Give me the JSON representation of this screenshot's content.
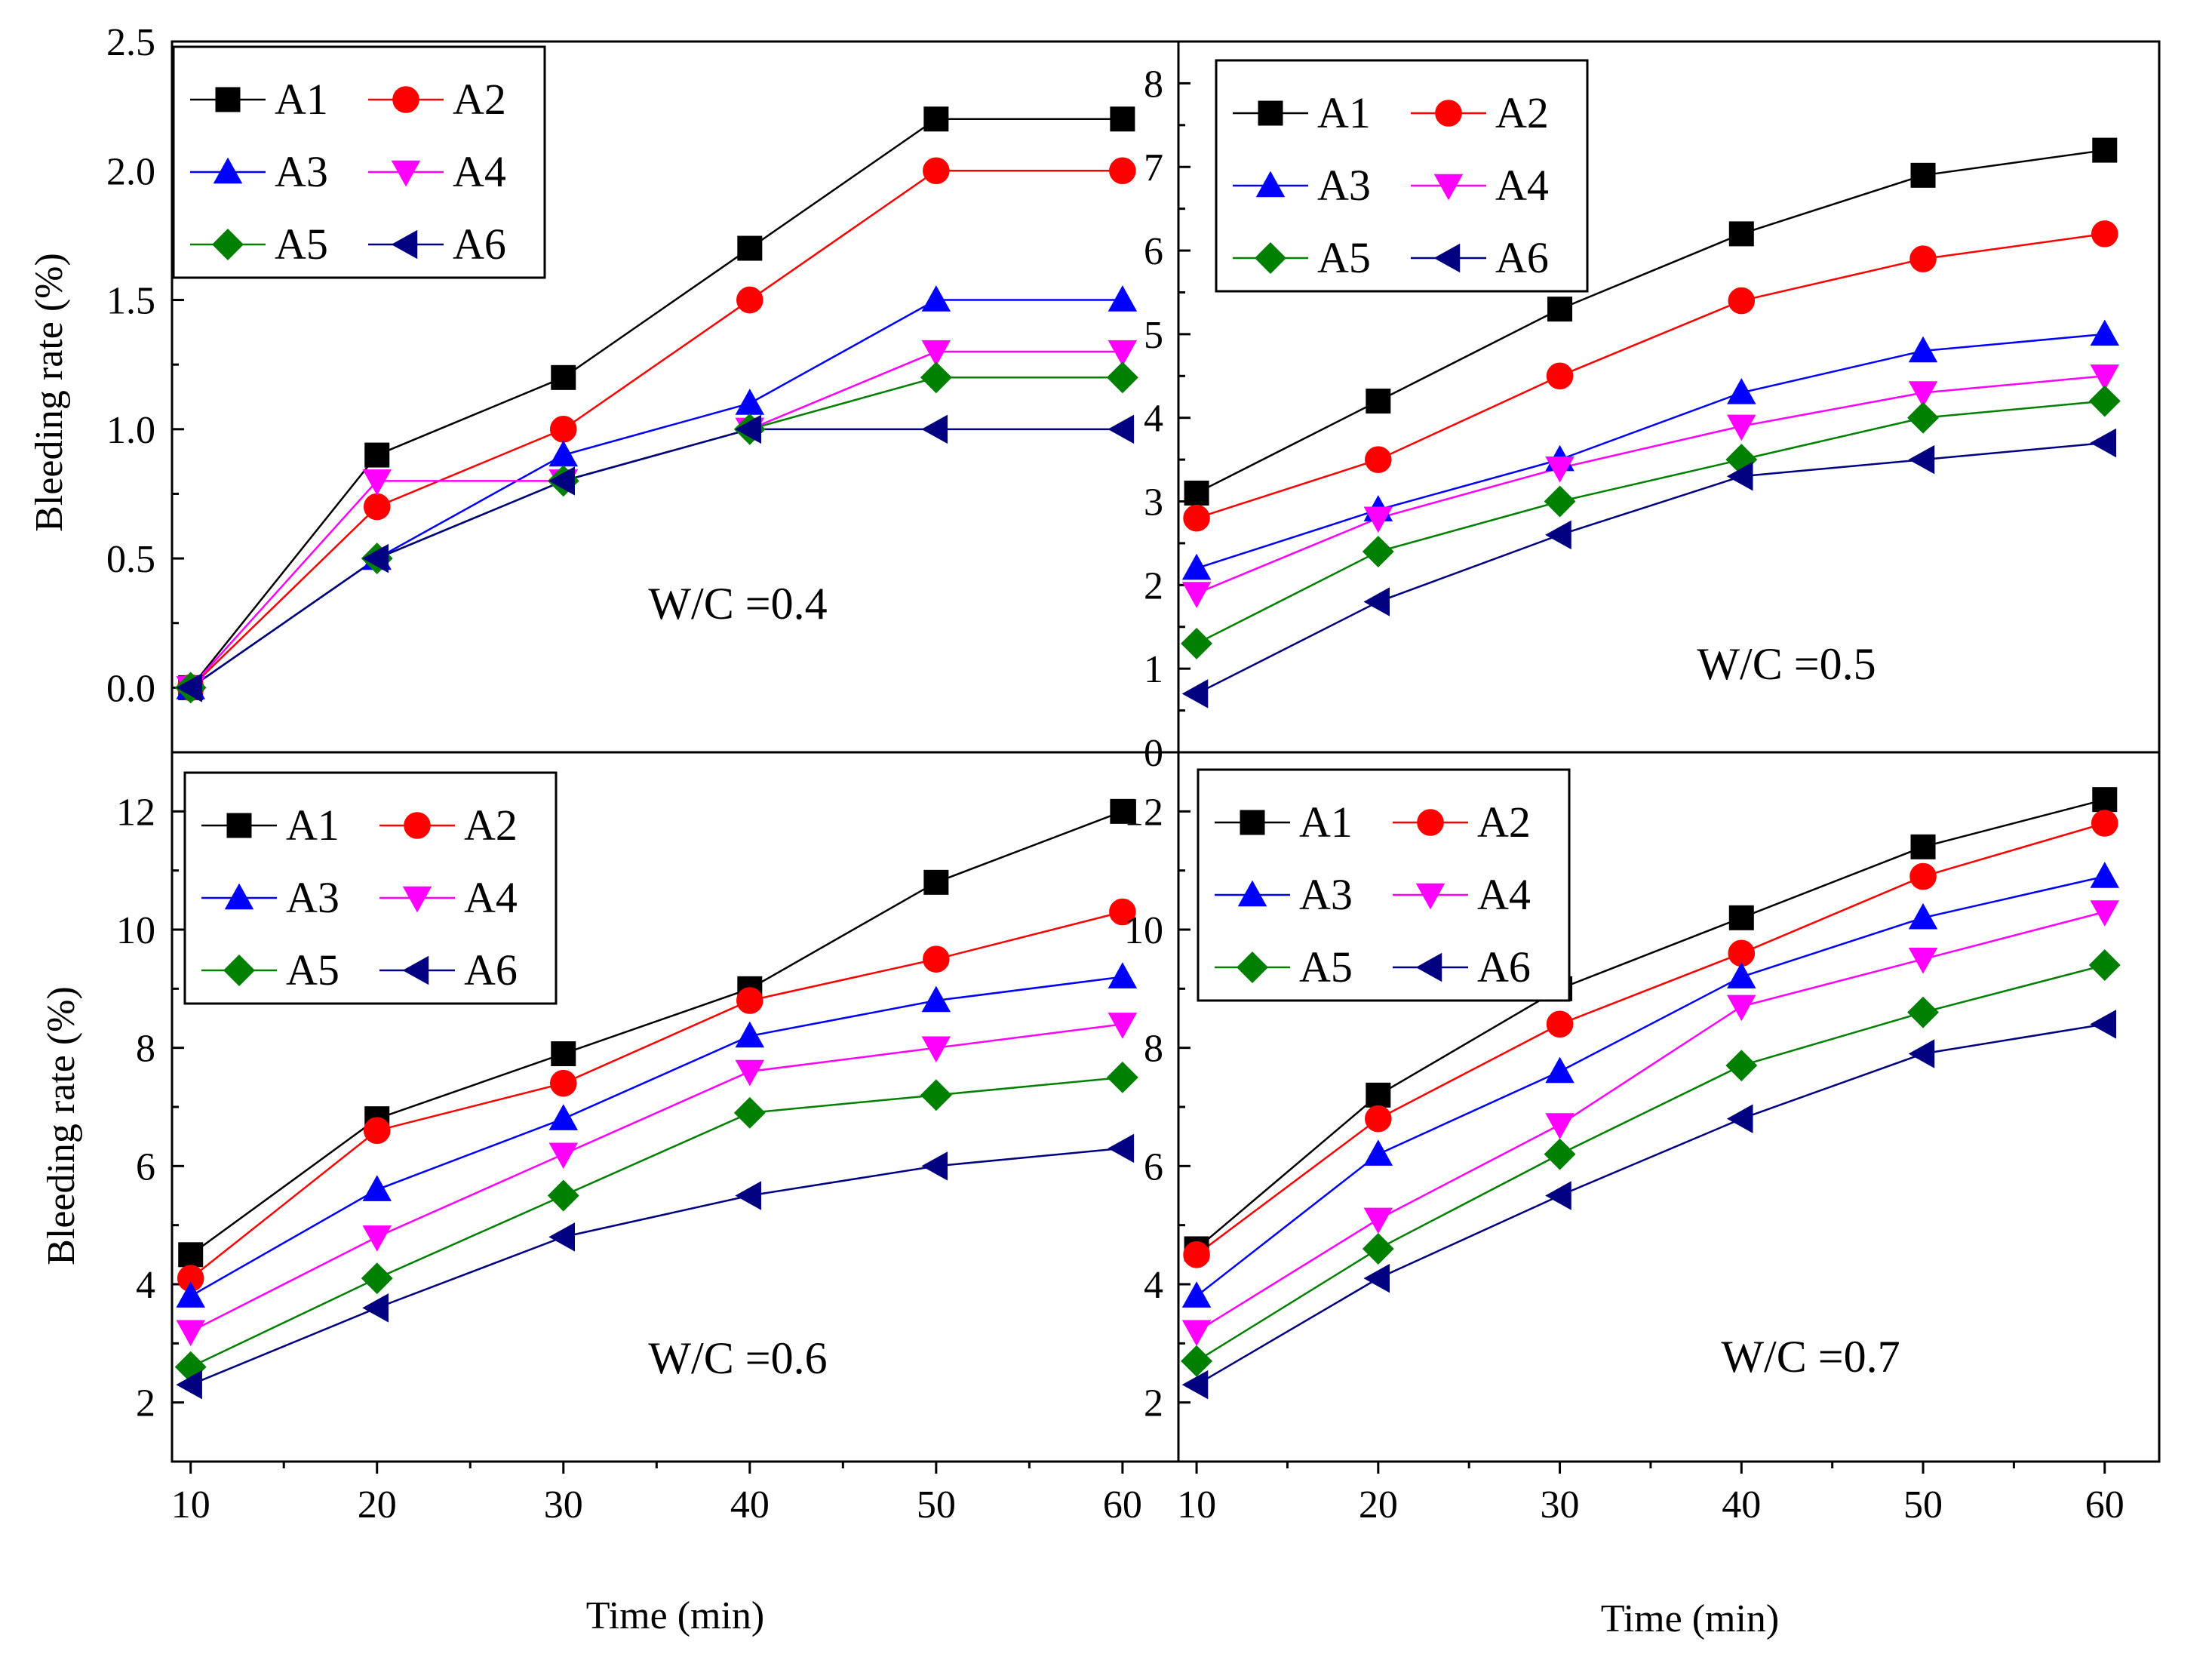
{
  "x_axis_label": "Time (min)",
  "y_axis_label": "Bleeding rate (%)",
  "markers": {
    "A1": "square",
    "A2": "circle",
    "A3": "triangle-up",
    "A4": "triangle-down",
    "A5": "diamond",
    "A6": "triangle-left"
  },
  "colors": {
    "A1": "#000000",
    "A2": "#ff0000",
    "A3": "#0000ff",
    "A4": "#ff00ff",
    "A5": "#008000",
    "A6": "#000080"
  },
  "chart_data": [
    {
      "type": "line",
      "annotation": "W/C =0.4",
      "x": [
        10,
        20,
        30,
        40,
        50,
        60
      ],
      "xlim": [
        9,
        63
      ],
      "ylim": [
        -0.25,
        2.5
      ],
      "yticks": [
        "0.0",
        "0.5",
        "1.0",
        "1.5",
        "2.0",
        "2.5"
      ],
      "xticks": [
        "10",
        "20",
        "30",
        "40",
        "50",
        "60"
      ],
      "legend": "top-left",
      "series": [
        {
          "name": "A1",
          "values": [
            0,
            0.9,
            1.2,
            1.7,
            2.2,
            2.2
          ]
        },
        {
          "name": "A2",
          "values": [
            0,
            0.7,
            1.0,
            1.5,
            2.0,
            2.0
          ]
        },
        {
          "name": "A3",
          "values": [
            0,
            0.5,
            0.9,
            1.1,
            1.5,
            1.5
          ]
        },
        {
          "name": "A4",
          "values": [
            0,
            0.8,
            0.8,
            1.0,
            1.3,
            1.3
          ]
        },
        {
          "name": "A5",
          "values": [
            0,
            0.5,
            0.8,
            1.0,
            1.2,
            1.2
          ]
        },
        {
          "name": "A6",
          "values": [
            0,
            0.5,
            0.8,
            1.0,
            1.0,
            1.0
          ]
        }
      ]
    },
    {
      "type": "line",
      "annotation": "W/C =0.5",
      "x": [
        10,
        20,
        30,
        40,
        50,
        60
      ],
      "xlim": [
        9,
        63
      ],
      "ylim": [
        0,
        8.5
      ],
      "yticks": [
        "0",
        "1",
        "2",
        "3",
        "4",
        "5",
        "6",
        "7",
        "8"
      ],
      "xticks": [
        "10",
        "20",
        "30",
        "40",
        "50",
        "60"
      ],
      "legend": "top-left",
      "series": [
        {
          "name": "A1",
          "values": [
            3.1,
            4.2,
            5.3,
            6.2,
            6.9,
            7.2
          ]
        },
        {
          "name": "A2",
          "values": [
            2.8,
            3.5,
            4.5,
            5.4,
            5.9,
            6.2
          ]
        },
        {
          "name": "A3",
          "values": [
            2.2,
            2.9,
            3.5,
            4.3,
            4.8,
            5.0
          ]
        },
        {
          "name": "A4",
          "values": [
            1.9,
            2.8,
            3.4,
            3.9,
            4.3,
            4.5
          ]
        },
        {
          "name": "A5",
          "values": [
            1.3,
            2.4,
            3.0,
            3.5,
            4.0,
            4.2
          ]
        },
        {
          "name": "A6",
          "values": [
            0.7,
            1.8,
            2.6,
            3.3,
            3.5,
            3.7
          ]
        }
      ]
    },
    {
      "type": "line",
      "annotation": "W/C =0.6",
      "x": [
        10,
        20,
        30,
        40,
        50,
        60
      ],
      "xlim": [
        9,
        63
      ],
      "ylim": [
        1,
        13
      ],
      "yticks": [
        "2",
        "4",
        "6",
        "8",
        "10",
        "12"
      ],
      "xticks": [
        "10",
        "20",
        "30",
        "40",
        "50",
        "60"
      ],
      "legend": "top-left",
      "series": [
        {
          "name": "A1",
          "values": [
            4.5,
            6.8,
            7.9,
            9.0,
            10.8,
            12.0
          ]
        },
        {
          "name": "A2",
          "values": [
            4.1,
            6.6,
            7.4,
            8.8,
            9.5,
            10.3
          ]
        },
        {
          "name": "A3",
          "values": [
            3.8,
            5.6,
            6.8,
            8.2,
            8.8,
            9.2
          ]
        },
        {
          "name": "A4",
          "values": [
            3.2,
            4.8,
            6.2,
            7.6,
            8.0,
            8.4
          ]
        },
        {
          "name": "A5",
          "values": [
            2.6,
            4.1,
            5.5,
            6.9,
            7.2,
            7.5
          ]
        },
        {
          "name": "A6",
          "values": [
            2.3,
            3.6,
            4.8,
            5.5,
            6.0,
            6.3
          ]
        }
      ]
    },
    {
      "type": "line",
      "annotation": "W/C =0.7",
      "x": [
        10,
        20,
        30,
        40,
        50,
        60
      ],
      "xlim": [
        9,
        63
      ],
      "ylim": [
        1,
        13
      ],
      "yticks": [
        "2",
        "4",
        "6",
        "8",
        "10",
        "12"
      ],
      "xticks": [
        "10",
        "20",
        "30",
        "40",
        "50",
        "60"
      ],
      "legend": "top-left",
      "series": [
        {
          "name": "A1",
          "values": [
            4.6,
            7.2,
            9.0,
            10.2,
            11.4,
            12.2
          ]
        },
        {
          "name": "A2",
          "values": [
            4.5,
            6.8,
            8.4,
            9.6,
            10.9,
            11.8
          ]
        },
        {
          "name": "A3",
          "values": [
            3.8,
            6.2,
            7.6,
            9.2,
            10.2,
            10.9
          ]
        },
        {
          "name": "A4",
          "values": [
            3.2,
            5.1,
            6.7,
            8.7,
            9.5,
            10.3
          ]
        },
        {
          "name": "A5",
          "values": [
            2.7,
            4.6,
            6.2,
            7.7,
            8.6,
            9.4
          ]
        },
        {
          "name": "A6",
          "values": [
            2.3,
            4.1,
            5.5,
            6.8,
            7.9,
            8.4
          ]
        }
      ]
    }
  ]
}
